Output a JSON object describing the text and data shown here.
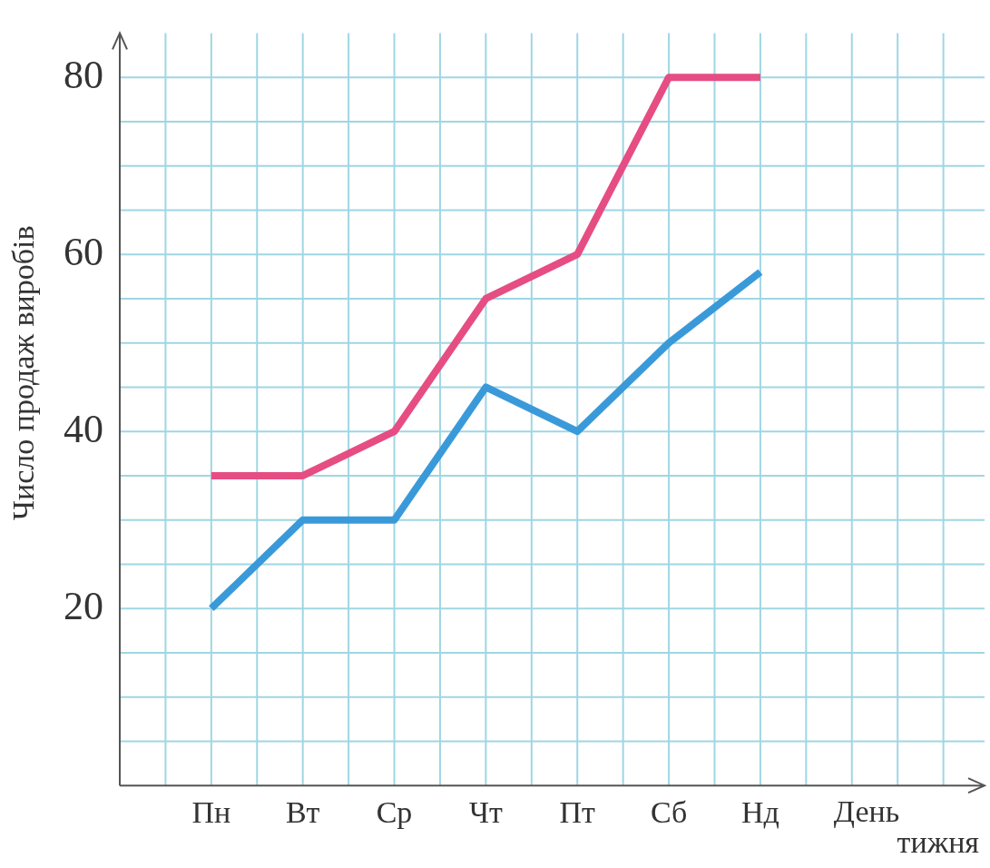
{
  "chart_data": {
    "type": "line",
    "xlabel": "День тижня",
    "ylabel": "Число продаж виробів",
    "categories": [
      "Пн",
      "Вт",
      "Ср",
      "Чт",
      "Пт",
      "Сб",
      "Нд"
    ],
    "series": [
      {
        "color": "#e64d82",
        "values": [
          35,
          35,
          40,
          55,
          60,
          80,
          80
        ]
      },
      {
        "color": "#3a9ad9",
        "values": [
          20,
          30,
          30,
          45,
          40,
          50,
          58
        ]
      }
    ],
    "ylim": [
      0,
      85
    ],
    "yticks": [
      {
        "value": 5,
        "label": null
      },
      {
        "value": 10,
        "label": null
      },
      {
        "value": 15,
        "label": null
      },
      20,
      {
        "value": 25,
        "label": null
      },
      {
        "value": 30,
        "label": null
      },
      {
        "value": 35,
        "label": null
      },
      40,
      {
        "value": 45,
        "label": null
      },
      {
        "value": 50,
        "label": null
      },
      {
        "value": 55,
        "label": null
      },
      60,
      {
        "value": 65,
        "label": null
      },
      {
        "value": 70,
        "label": null
      },
      {
        "value": 75,
        "label": null
      },
      80
    ],
    "grid": true,
    "legend": false,
    "marker": "none",
    "line_style": "solid"
  }
}
